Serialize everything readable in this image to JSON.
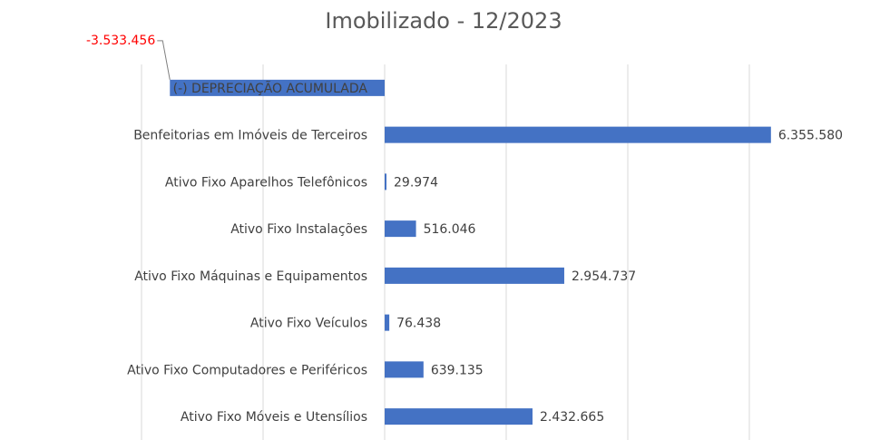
{
  "chart_data": {
    "type": "barh",
    "title": "Imobilizado - 12/2023",
    "categories": [
      "(-) DEPRECIAÇÃO ACUMULADA",
      "Benfeitorias em Imóveis de Terceiros",
      "Ativo Fixo Aparelhos Telefônicos",
      "Ativo Fixo Instalações",
      "Ativo Fixo Máquinas e Equipamentos",
      "Ativo Fixo Veículos",
      "Ativo Fixo Computadores e Periféricos",
      "Ativo Fixo Móveis e Utensílios"
    ],
    "values": [
      -3533456,
      6355580,
      29974,
      516046,
      2954737,
      76438,
      639135,
      2432665
    ],
    "value_labels": [
      "-3.533.456",
      "6.355.580",
      "29.974",
      "516.046",
      "2.954.737",
      "76.438",
      "639.135",
      "2.432.665"
    ],
    "color": "#4472c4",
    "negative_label_color": "#ff0000",
    "xlim": [
      -6000000,
      8000000
    ],
    "xticks": [
      -4000000,
      -2000000,
      0,
      2000000,
      4000000,
      6000000
    ],
    "grid": true
  }
}
